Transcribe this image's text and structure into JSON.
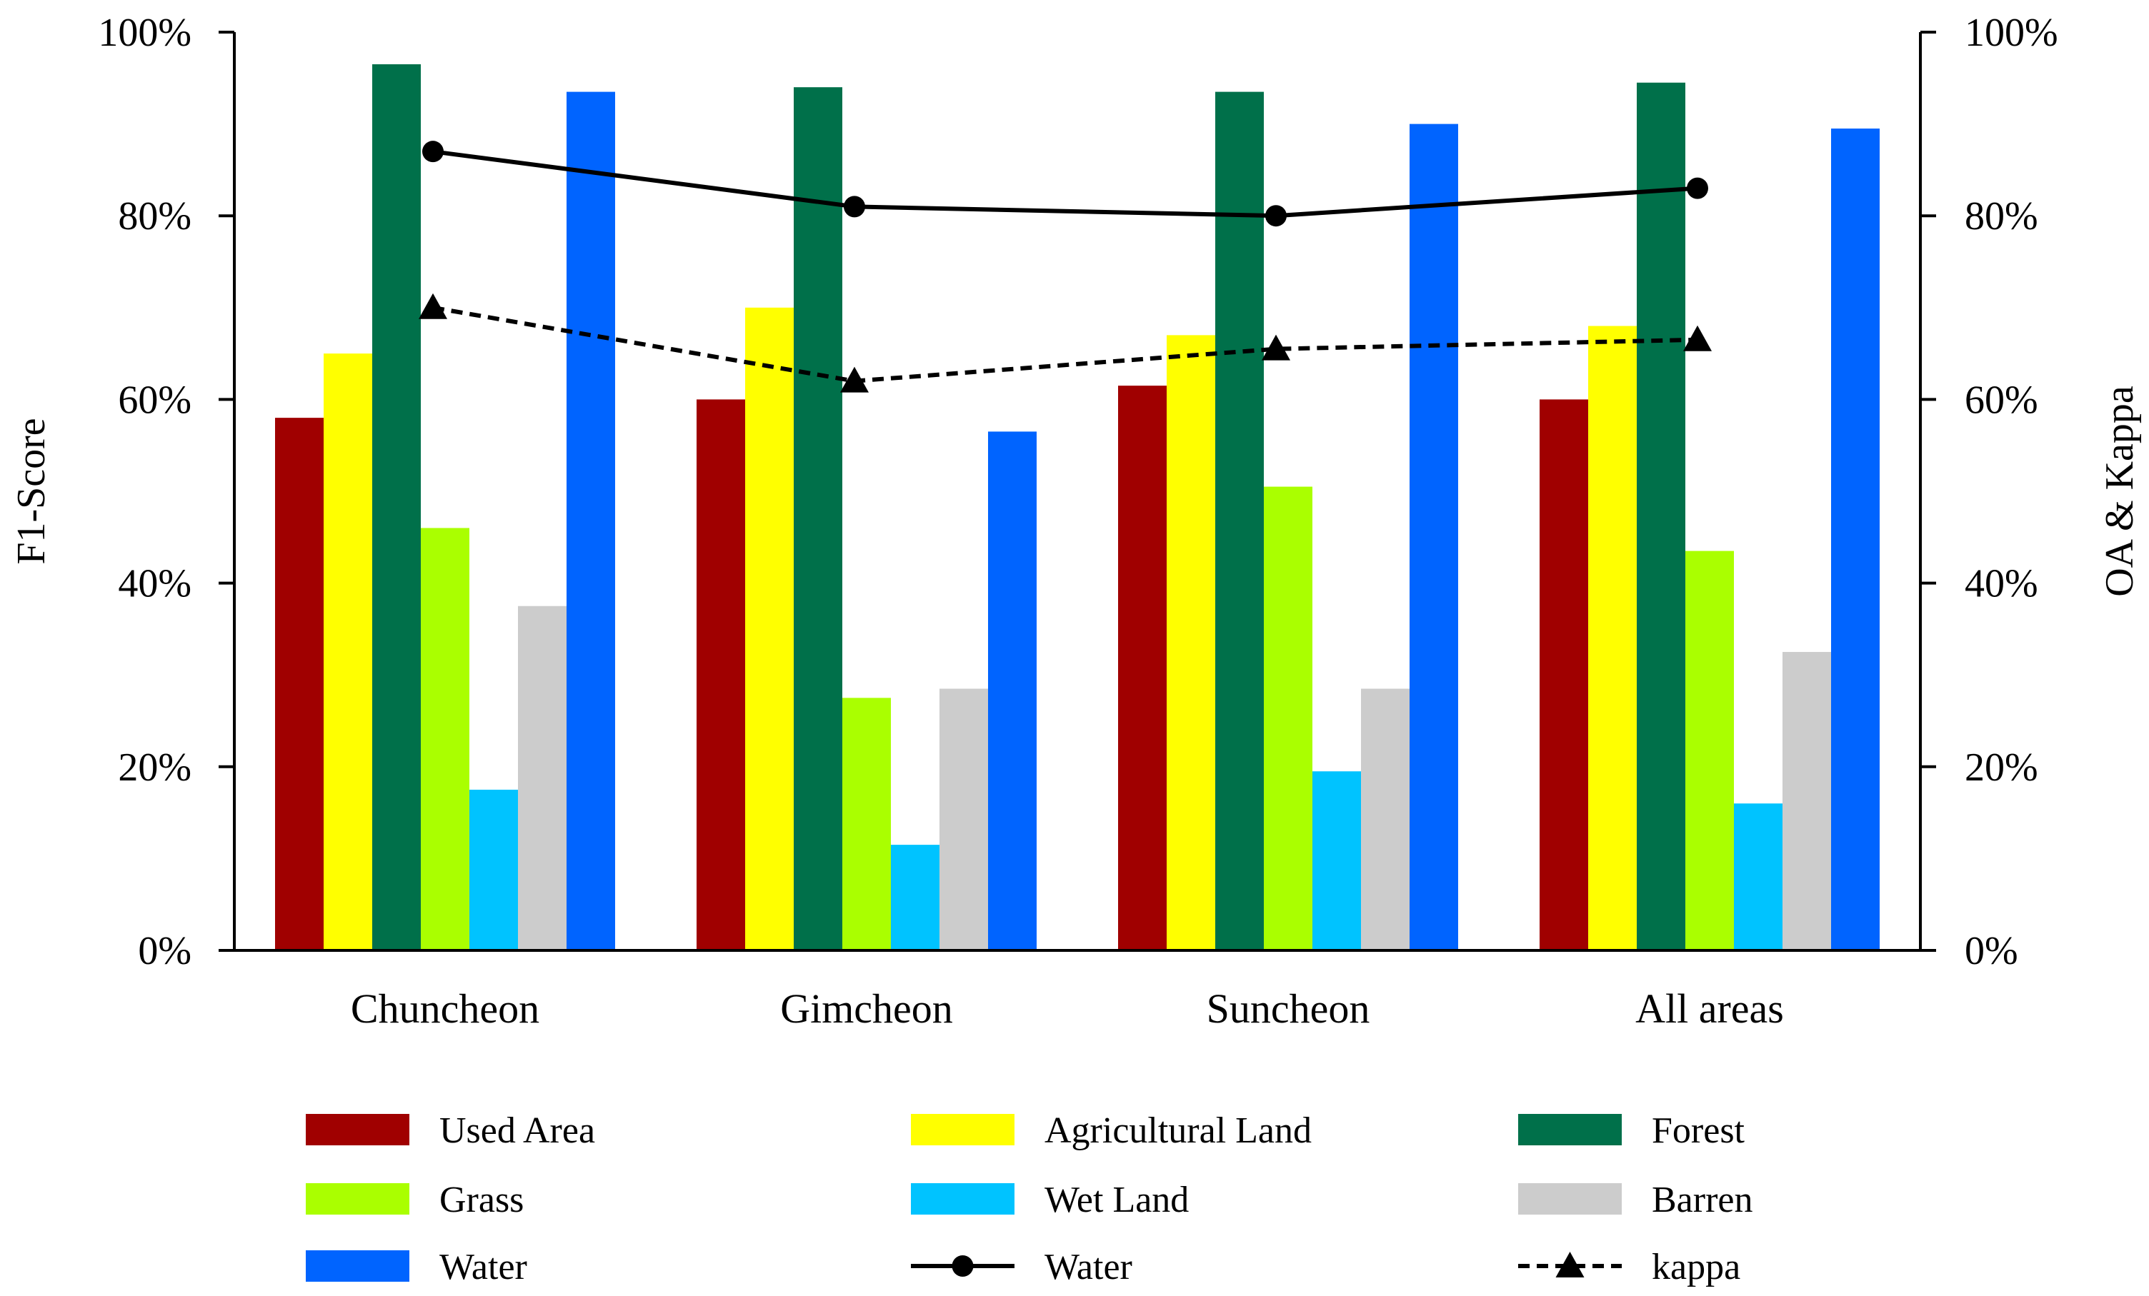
{
  "chart_data": {
    "type": "bar",
    "categories": [
      "Chuncheon",
      "Gimcheon",
      "Suncheon",
      "All areas"
    ],
    "series": [
      {
        "name": "Used Area",
        "color": "#a00000",
        "values": [
          58,
          60,
          61.5,
          60
        ]
      },
      {
        "name": "Agricultural Land",
        "color": "#ffff00",
        "values": [
          65,
          70,
          67,
          68
        ]
      },
      {
        "name": "Forest",
        "color": "#00704a",
        "values": [
          96.5,
          94,
          93.5,
          94.5
        ]
      },
      {
        "name": "Grass",
        "color": "#aaff00",
        "values": [
          46,
          27.5,
          50.5,
          43.5
        ]
      },
      {
        "name": "Wet Land",
        "color": "#00c3ff",
        "values": [
          17.5,
          11.5,
          19.5,
          16
        ]
      },
      {
        "name": "Barren",
        "color": "#cccccc",
        "values": [
          37.5,
          28.5,
          28.5,
          32.5
        ]
      },
      {
        "name": "Water",
        "color": "#0064ff",
        "values": [
          93.5,
          56.5,
          90,
          89.5
        ]
      }
    ],
    "lines": [
      {
        "name": "Water",
        "color": "#000000",
        "style": "solid",
        "marker": "circle",
        "values": [
          87,
          81,
          80,
          83
        ]
      },
      {
        "name": "kappa",
        "color": "#000000",
        "style": "dashed",
        "marker": "triangle",
        "values": [
          70,
          62,
          65.5,
          66.5
        ]
      }
    ],
    "ylabel": "F1-Score",
    "y2label": "OA & Kappa",
    "ylim": [
      0,
      100
    ],
    "y2lim": [
      0,
      100
    ],
    "yticks": [
      "0%",
      "20%",
      "40%",
      "60%",
      "80%",
      "100%"
    ],
    "y2ticks": [
      "0%",
      "20%",
      "40%",
      "60%",
      "80%",
      "100%"
    ],
    "grid": false,
    "legend_position": "bottom"
  }
}
